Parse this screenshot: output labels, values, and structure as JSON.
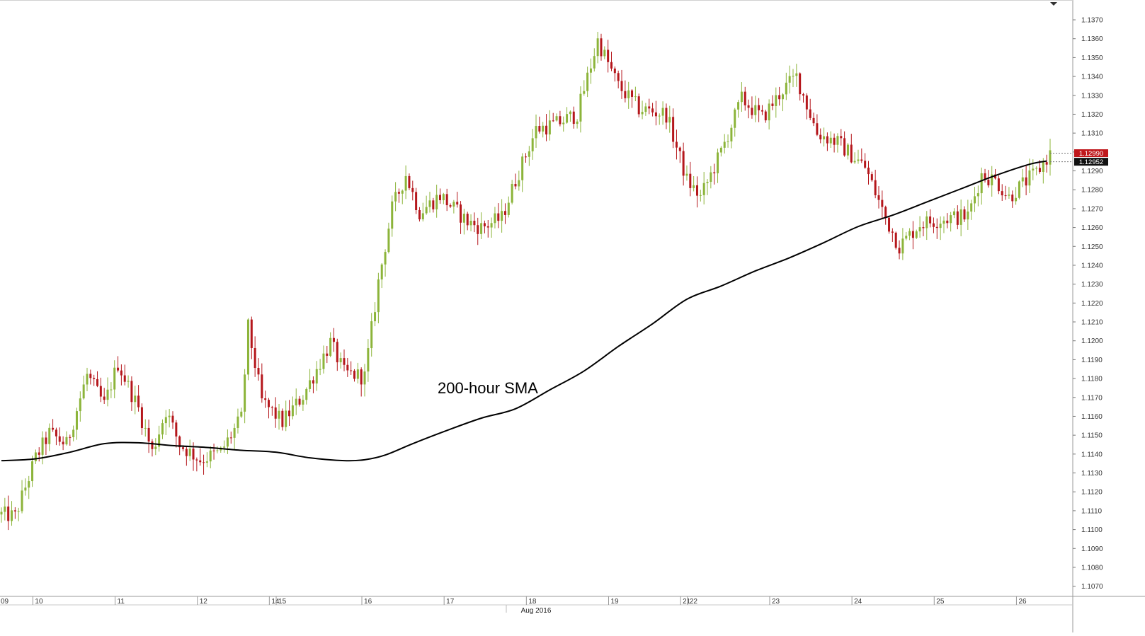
{
  "chart_data": {
    "type": "candlestick",
    "title": "",
    "annotation": "200-hour SMA",
    "month_label": "Aug 2016",
    "ylim": [
      1.1065,
      1.1379
    ],
    "grid": false,
    "y_ticks": [
      1.107,
      1.108,
      1.109,
      1.11,
      1.111,
      1.112,
      1.113,
      1.114,
      1.115,
      1.116,
      1.117,
      1.118,
      1.119,
      1.12,
      1.121,
      1.122,
      1.123,
      1.124,
      1.125,
      1.126,
      1.127,
      1.128,
      1.129,
      1.13,
      1.131,
      1.132,
      1.133,
      1.134,
      1.135,
      1.136,
      1.137
    ],
    "y_tick_labels": [
      "1.1070",
      "1.1080",
      "1.1090",
      "1.1100",
      "1.1110",
      "1.1120",
      "1.1130",
      "1.1140",
      "1.1150",
      "1.1160",
      "1.1170",
      "1.1180",
      "1.1190",
      "1.1200",
      "1.1210",
      "1.1220",
      "1.1230",
      "1.1240",
      "1.1250",
      "1.1260",
      "1.1270",
      "1.1280",
      "1.1290",
      "1.1300",
      "1.1310",
      "1.1320",
      "1.1330",
      "1.1340",
      "1.1350",
      "1.1360",
      "1.1370"
    ],
    "x_ticks": [
      {
        "label": "09",
        "bar": 0
      },
      {
        "label": "10",
        "bar": 10
      },
      {
        "label": "11",
        "bar": 34
      },
      {
        "label": "12",
        "bar": 58
      },
      {
        "label": "14",
        "bar": 79
      },
      {
        "label": "15",
        "bar": 81
      },
      {
        "label": "16",
        "bar": 106
      },
      {
        "label": "17",
        "bar": 130
      },
      {
        "label": "18",
        "bar": 154
      },
      {
        "label": "19",
        "bar": 178
      },
      {
        "label": "21",
        "bar": 199
      },
      {
        "label": "22",
        "bar": 201
      },
      {
        "label": "23",
        "bar": 225
      },
      {
        "label": "24",
        "bar": 249
      },
      {
        "label": "25",
        "bar": 273
      },
      {
        "label": "26",
        "bar": 297
      }
    ],
    "price_markers": [
      {
        "label": "1.12990",
        "value": 1.1299,
        "color": "#c0181c"
      },
      {
        "label": "1.12952",
        "value": 1.12952,
        "color": "#111111"
      }
    ],
    "sma_points": [
      [
        0,
        1.11365
      ],
      [
        10,
        1.11375
      ],
      [
        20,
        1.1141
      ],
      [
        30,
        1.11455
      ],
      [
        40,
        1.1146
      ],
      [
        50,
        1.11445
      ],
      [
        60,
        1.11435
      ],
      [
        70,
        1.1142
      ],
      [
        80,
        1.1141
      ],
      [
        90,
        1.1138
      ],
      [
        100,
        1.11365
      ],
      [
        106,
        1.1137
      ],
      [
        112,
        1.11395
      ],
      [
        120,
        1.11455
      ],
      [
        130,
        1.11525
      ],
      [
        140,
        1.1159
      ],
      [
        150,
        1.1164
      ],
      [
        160,
        1.1174
      ],
      [
        170,
        1.1184
      ],
      [
        180,
        1.1197
      ],
      [
        190,
        1.1209
      ],
      [
        200,
        1.1222
      ],
      [
        210,
        1.1229
      ],
      [
        220,
        1.1237
      ],
      [
        230,
        1.1244
      ],
      [
        240,
        1.1252
      ],
      [
        250,
        1.12605
      ],
      [
        260,
        1.12665
      ],
      [
        270,
        1.12735
      ],
      [
        280,
        1.12805
      ],
      [
        290,
        1.12875
      ],
      [
        300,
        1.12935
      ],
      [
        305,
        1.12952
      ]
    ],
    "candles": {
      "bullish_color": "#8cb43a",
      "bearish_color": "#b5171c",
      "anchors": [
        [
          0,
          1.1108
        ],
        [
          4,
          1.1107
        ],
        [
          10,
          1.1138
        ],
        [
          14,
          1.1151
        ],
        [
          19,
          1.1145
        ],
        [
          25,
          1.1182
        ],
        [
          30,
          1.1166
        ],
        [
          34,
          1.1188
        ],
        [
          40,
          1.1164
        ],
        [
          44,
          1.1141
        ],
        [
          48,
          1.1163
        ],
        [
          52,
          1.1145
        ],
        [
          58,
          1.1137
        ],
        [
          64,
          1.1141
        ],
        [
          70,
          1.1159
        ],
        [
          72,
          1.1207
        ],
        [
          76,
          1.1168
        ],
        [
          82,
          1.1157
        ],
        [
          88,
          1.1171
        ],
        [
          96,
          1.1199
        ],
        [
          100,
          1.1183
        ],
        [
          106,
          1.1181
        ],
        [
          110,
          1.1231
        ],
        [
          114,
          1.127
        ],
        [
          118,
          1.1288
        ],
        [
          122,
          1.1268
        ],
        [
          128,
          1.1277
        ],
        [
          136,
          1.1263
        ],
        [
          140,
          1.126
        ],
        [
          146,
          1.1265
        ],
        [
          150,
          1.1285
        ],
        [
          156,
          1.1312
        ],
        [
          162,
          1.1315
        ],
        [
          168,
          1.132
        ],
        [
          174,
          1.1359
        ],
        [
          180,
          1.1335
        ],
        [
          186,
          1.1323
        ],
        [
          194,
          1.132
        ],
        [
          200,
          1.1285
        ],
        [
          204,
          1.1276
        ],
        [
          210,
          1.13
        ],
        [
          216,
          1.1328
        ],
        [
          222,
          1.1318
        ],
        [
          228,
          1.1333
        ],
        [
          232,
          1.134
        ],
        [
          238,
          1.131
        ],
        [
          244,
          1.1305
        ],
        [
          252,
          1.1292
        ],
        [
          258,
          1.1265
        ],
        [
          262,
          1.125
        ],
        [
          268,
          1.1262
        ],
        [
          276,
          1.1265
        ],
        [
          282,
          1.1266
        ],
        [
          286,
          1.1288
        ],
        [
          290,
          1.1285
        ],
        [
          294,
          1.1276
        ],
        [
          298,
          1.1283
        ],
        [
          302,
          1.1289
        ],
        [
          306,
          1.1299
        ]
      ]
    },
    "bar_count": 307
  }
}
